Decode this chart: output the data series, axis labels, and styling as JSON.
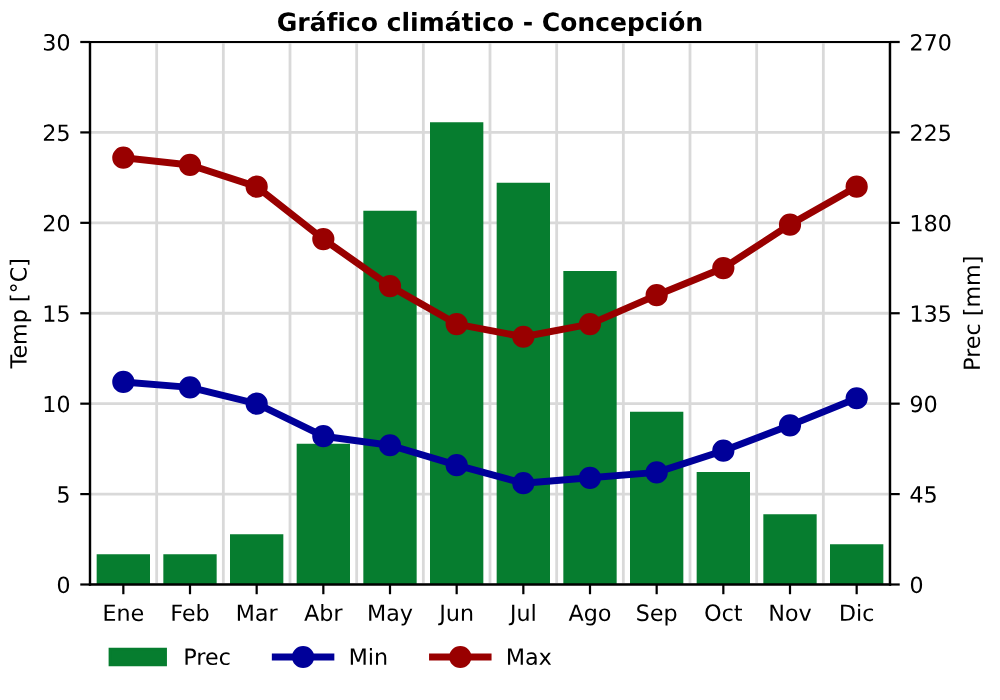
{
  "chart_data": {
    "type": "bar",
    "title": "Gráfico climático - Concepción",
    "ylabel": "Temp [°C]",
    "y2label": "Prec [mm]",
    "categories": [
      "Ene",
      "Feb",
      "Mar",
      "Abr",
      "May",
      "Jun",
      "Jul",
      "Ago",
      "Sep",
      "Oct",
      "Nov",
      "Dic"
    ],
    "series": [
      {
        "name": "Prec",
        "axis": "y2",
        "color": "#067d2f",
        "values": [
          15,
          15,
          25,
          70,
          186,
          230,
          200,
          156,
          86,
          56,
          35,
          20
        ]
      },
      {
        "name": "Min",
        "type": "line",
        "color": "#000099",
        "values": [
          11.2,
          10.9,
          10.0,
          8.2,
          7.7,
          6.6,
          5.6,
          5.9,
          6.2,
          7.4,
          8.8,
          10.3
        ]
      },
      {
        "name": "Max",
        "type": "line",
        "color": "#990000",
        "values": [
          23.6,
          23.2,
          22.0,
          19.1,
          16.5,
          14.4,
          13.7,
          14.4,
          16.0,
          17.5,
          19.9,
          22.0
        ]
      }
    ],
    "ylim": [
      0,
      30
    ],
    "yticks": [
      0,
      5,
      10,
      15,
      20,
      25,
      30
    ],
    "y2lim": [
      0,
      270
    ],
    "y2ticks": [
      0,
      45,
      90,
      135,
      180,
      225,
      270
    ],
    "grid": true,
    "legend": "bottom",
    "marker": "circle",
    "line_style": "solid"
  }
}
